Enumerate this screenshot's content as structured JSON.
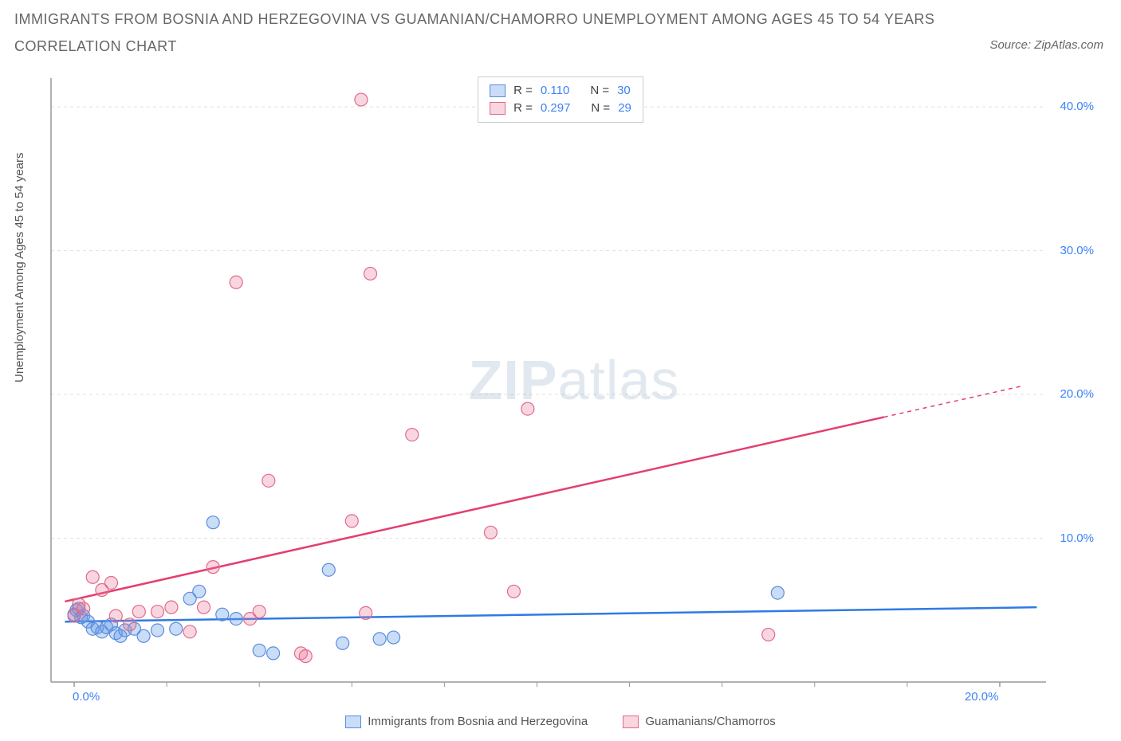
{
  "title_line1": "IMMIGRANTS FROM BOSNIA AND HERZEGOVINA VS GUAMANIAN/CHAMORRO UNEMPLOYMENT AMONG AGES 45 TO 54 YEARS",
  "title_line2": "CORRELATION CHART",
  "source": "Source: ZipAtlas.com",
  "y_axis_label": "Unemployment Among Ages 45 to 54 years",
  "watermark_zip": "ZIP",
  "watermark_atlas": "atlas",
  "chart": {
    "type": "scatter",
    "background_color": "#ffffff",
    "grid_color": "#e0e0e0",
    "axis_color": "#999999",
    "tick_color": "#999999",
    "xlim": [
      -0.5,
      21
    ],
    "ylim": [
      0,
      42
    ],
    "y_ticks": [
      {
        "value": 10,
        "label": "10.0%"
      },
      {
        "value": 20,
        "label": "20.0%"
      },
      {
        "value": 30,
        "label": "30.0%"
      },
      {
        "value": 40,
        "label": "40.0%"
      }
    ],
    "x_ticks_major": [
      {
        "value": 0,
        "label": "0.0%"
      },
      {
        "value": 20,
        "label": "20.0%"
      }
    ],
    "x_ticks_minor": [
      2,
      4,
      6,
      8,
      10,
      12,
      14,
      16,
      18
    ],
    "series": [
      {
        "name": "Immigrants from Bosnia and Herzegovina",
        "marker_fill": "rgba(99, 155, 235, 0.35)",
        "marker_stroke": "#5a8dd8",
        "marker_radius": 8,
        "line_color": "#2f7ae5",
        "line_width": 2.5,
        "trend_start": {
          "x": -0.2,
          "y": 4.2
        },
        "trend_end": {
          "x": 20.8,
          "y": 5.2
        },
        "trend_dash_from_x": 20.8,
        "points": [
          {
            "x": 0.0,
            "y": 4.7
          },
          {
            "x": 0.05,
            "y": 5.0
          },
          {
            "x": 0.1,
            "y": 5.1
          },
          {
            "x": 0.15,
            "y": 4.5
          },
          {
            "x": 0.2,
            "y": 4.6
          },
          {
            "x": 0.3,
            "y": 4.2
          },
          {
            "x": 0.4,
            "y": 3.7
          },
          {
            "x": 0.5,
            "y": 3.8
          },
          {
            "x": 0.6,
            "y": 3.5
          },
          {
            "x": 0.7,
            "y": 3.8
          },
          {
            "x": 0.8,
            "y": 4.0
          },
          {
            "x": 0.9,
            "y": 3.4
          },
          {
            "x": 1.0,
            "y": 3.2
          },
          {
            "x": 1.1,
            "y": 3.6
          },
          {
            "x": 1.3,
            "y": 3.7
          },
          {
            "x": 1.5,
            "y": 3.2
          },
          {
            "x": 1.8,
            "y": 3.6
          },
          {
            "x": 2.2,
            "y": 3.7
          },
          {
            "x": 2.5,
            "y": 5.8
          },
          {
            "x": 2.7,
            "y": 6.3
          },
          {
            "x": 3.0,
            "y": 11.1
          },
          {
            "x": 3.2,
            "y": 4.7
          },
          {
            "x": 3.5,
            "y": 4.4
          },
          {
            "x": 4.0,
            "y": 2.2
          },
          {
            "x": 4.3,
            "y": 2.0
          },
          {
            "x": 5.5,
            "y": 7.8
          },
          {
            "x": 5.8,
            "y": 2.7
          },
          {
            "x": 6.6,
            "y": 3.0
          },
          {
            "x": 6.9,
            "y": 3.1
          },
          {
            "x": 15.2,
            "y": 6.2
          }
        ]
      },
      {
        "name": "Guamanians/Chamorros",
        "marker_fill": "rgba(235, 120, 150, 0.30)",
        "marker_stroke": "#e06a8c",
        "marker_radius": 8,
        "line_color": "#e43e6e",
        "line_width": 2.5,
        "trend_start": {
          "x": -0.2,
          "y": 5.6
        },
        "trend_end": {
          "x": 20.5,
          "y": 20.6
        },
        "trend_dash_from_x": 17.5,
        "points": [
          {
            "x": 0.0,
            "y": 4.6
          },
          {
            "x": 0.1,
            "y": 5.4
          },
          {
            "x": 0.2,
            "y": 5.1
          },
          {
            "x": 0.4,
            "y": 7.3
          },
          {
            "x": 0.6,
            "y": 6.4
          },
          {
            "x": 0.8,
            "y": 6.9
          },
          {
            "x": 0.9,
            "y": 4.6
          },
          {
            "x": 1.2,
            "y": 4.0
          },
          {
            "x": 1.4,
            "y": 4.9
          },
          {
            "x": 1.8,
            "y": 4.9
          },
          {
            "x": 2.1,
            "y": 5.2
          },
          {
            "x": 2.5,
            "y": 3.5
          },
          {
            "x": 2.8,
            "y": 5.2
          },
          {
            "x": 3.0,
            "y": 8.0
          },
          {
            "x": 3.5,
            "y": 27.8
          },
          {
            "x": 3.8,
            "y": 4.4
          },
          {
            "x": 4.0,
            "y": 4.9
          },
          {
            "x": 4.2,
            "y": 14.0
          },
          {
            "x": 4.9,
            "y": 2.0
          },
          {
            "x": 5.0,
            "y": 1.8
          },
          {
            "x": 6.0,
            "y": 11.2
          },
          {
            "x": 6.2,
            "y": 40.5
          },
          {
            "x": 6.3,
            "y": 4.8
          },
          {
            "x": 6.4,
            "y": 28.4
          },
          {
            "x": 7.3,
            "y": 17.2
          },
          {
            "x": 9.0,
            "y": 10.4
          },
          {
            "x": 9.8,
            "y": 19.0
          },
          {
            "x": 9.5,
            "y": 6.3
          },
          {
            "x": 15.0,
            "y": 3.3
          }
        ]
      }
    ]
  },
  "legend_top": [
    {
      "swatch_fill": "rgba(99,155,235,0.35)",
      "swatch_stroke": "#5a8dd8",
      "r_label": "R =",
      "r_value": "0.110",
      "n_label": "N =",
      "n_value": "30"
    },
    {
      "swatch_fill": "rgba(235,120,150,0.30)",
      "swatch_stroke": "#e06a8c",
      "r_label": "R =",
      "r_value": "0.297",
      "n_label": "N =",
      "n_value": "29"
    }
  ],
  "legend_bottom": [
    {
      "swatch_fill": "rgba(99,155,235,0.35)",
      "swatch_stroke": "#5a8dd8",
      "label": "Immigrants from Bosnia and Herzegovina"
    },
    {
      "swatch_fill": "rgba(235,120,150,0.30)",
      "swatch_stroke": "#e06a8c",
      "label": "Guamanians/Chamorros"
    }
  ]
}
